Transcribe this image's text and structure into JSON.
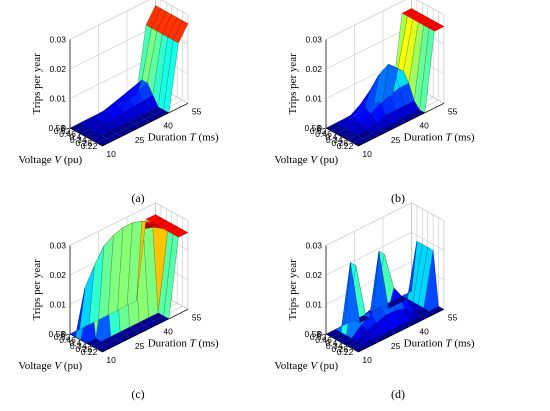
{
  "colors": {
    "colormap": "jet",
    "floor": "#00008f",
    "background": "#ffffff"
  },
  "chart_data": [
    {
      "type": "surface3d",
      "caption": "(a)",
      "zlabel": "Trips per year",
      "xlabel_main": "Duration",
      "xlabel_var": "T",
      "xlabel_unit": "(ms)",
      "ylabel_main": "Voltage",
      "ylabel_var": "V",
      "ylabel_unit": "(pu)",
      "x_ticks": [
        "10",
        "25",
        "40",
        "55"
      ],
      "y_ticks": [
        "0.22",
        "0.28",
        "0.34",
        "0.4",
        "0.46",
        "0.52",
        "0.58"
      ],
      "z_ticks": [
        "0",
        "0.01",
        "0.02",
        "0.03"
      ],
      "xlim": [
        10,
        55
      ],
      "ylim": [
        0.22,
        0.58
      ],
      "zlim": [
        0,
        0.03
      ],
      "duration": [
        10,
        15,
        20,
        25,
        30,
        35,
        40,
        45,
        50,
        55
      ],
      "voltage": [
        0.22,
        0.28,
        0.34,
        0.4,
        0.46,
        0.52,
        0.58
      ],
      "z": [
        [
          0,
          0,
          0,
          0,
          0,
          0,
          0,
          0,
          0.022,
          0.027
        ],
        [
          0,
          0,
          0,
          0,
          0,
          0,
          0,
          0,
          0.022,
          0.027
        ],
        [
          0,
          0,
          0,
          0,
          0,
          0,
          0,
          0,
          0.022,
          0.027
        ],
        [
          0,
          0,
          0.0005,
          0.001,
          0.002,
          0.0025,
          0.0025,
          0.003,
          0.022,
          0.027
        ],
        [
          0,
          0,
          0.001,
          0.002,
          0.003,
          0.004,
          0.005,
          0.006,
          0.022,
          0.027
        ],
        [
          0,
          0,
          0.001,
          0.002,
          0.003,
          0.004,
          0.005,
          0.006,
          0.022,
          0.027
        ],
        [
          0,
          0,
          0,
          0,
          0,
          0,
          0,
          0,
          0.022,
          0.027
        ]
      ]
    },
    {
      "type": "surface3d",
      "caption": "(b)",
      "zlabel": "Trips per year",
      "xlabel_main": "Duration",
      "xlabel_var": "T",
      "xlabel_unit": "(ms)",
      "ylabel_main": "Voltage",
      "ylabel_var": "V",
      "ylabel_unit": "(pu)",
      "x_ticks": [
        "10",
        "25",
        "40",
        "55"
      ],
      "y_ticks": [
        "0.22",
        "0.28",
        "0.34",
        "0.4",
        "0.46",
        "0.52",
        "0.58"
      ],
      "z_ticks": [
        "0",
        "0.01",
        "0.02",
        "0.03"
      ],
      "xlim": [
        10,
        55
      ],
      "ylim": [
        0.22,
        0.58
      ],
      "zlim": [
        0,
        0.03
      ],
      "duration": [
        10,
        15,
        20,
        25,
        30,
        35,
        40,
        45,
        50,
        55
      ],
      "voltage": [
        0.22,
        0.28,
        0.34,
        0.4,
        0.46,
        0.52,
        0.58
      ],
      "z": [
        [
          0,
          0,
          0,
          0,
          0,
          0,
          0,
          0,
          0.026,
          0.026
        ],
        [
          0,
          0,
          0,
          0,
          0,
          0,
          0,
          0,
          0.026,
          0.026
        ],
        [
          0,
          0,
          0,
          0.001,
          0.002,
          0.002,
          0.002,
          0.002,
          0.026,
          0.026
        ],
        [
          0,
          0,
          0.001,
          0.003,
          0.005,
          0.006,
          0.007,
          0.007,
          0.026,
          0.026
        ],
        [
          0,
          0,
          0.002,
          0.004,
          0.007,
          0.011,
          0.013,
          0.01,
          0.026,
          0.026
        ],
        [
          0,
          0,
          0.002,
          0.004,
          0.007,
          0.011,
          0.013,
          0.01,
          0.026,
          0.026
        ],
        [
          0,
          0,
          0,
          0,
          0,
          0,
          0,
          0,
          0.026,
          0.026
        ]
      ]
    },
    {
      "type": "surface3d",
      "caption": "(c)",
      "zlabel": "Trips per year",
      "xlabel_main": "Duration",
      "xlabel_var": "T",
      "xlabel_unit": "(ms)",
      "ylabel_main": "Voltage",
      "ylabel_var": "V",
      "ylabel_unit": "(pu)",
      "x_ticks": [
        "10",
        "25",
        "40",
        "55"
      ],
      "y_ticks": [
        "0.22",
        "0.28",
        "0.34",
        "0.4",
        "0.46",
        "0.52",
        "0.58"
      ],
      "z_ticks": [
        "0",
        "0.01",
        "0.02",
        "0.03"
      ],
      "xlim": [
        10,
        55
      ],
      "ylim": [
        0.22,
        0.58
      ],
      "zlim": [
        0,
        0.03
      ],
      "duration": [
        10,
        15,
        20,
        25,
        30,
        35,
        40,
        45,
        50,
        55
      ],
      "voltage": [
        0.22,
        0.28,
        0.34,
        0.4,
        0.46,
        0.52,
        0.58
      ],
      "z": [
        [
          0,
          0,
          0,
          0,
          0,
          0,
          0,
          0,
          0.026,
          0.026
        ],
        [
          0,
          0,
          0,
          0,
          0,
          0,
          0,
          0,
          0.026,
          0.026
        ],
        [
          0,
          0,
          0,
          0,
          0,
          0,
          0,
          0,
          0.026,
          0.026
        ],
        [
          0,
          0,
          0.021,
          0.026,
          0.028,
          0.029,
          0.029,
          0.028,
          0.026,
          0.026
        ],
        [
          0,
          0.015,
          0.021,
          0.026,
          0.028,
          0.029,
          0.029,
          0.028,
          0.026,
          0.026
        ],
        [
          0,
          0.015,
          0.021,
          0.026,
          0.028,
          0.029,
          0.029,
          0.028,
          0.026,
          0.026
        ],
        [
          0,
          0,
          0,
          0,
          0,
          0,
          0,
          0,
          0.026,
          0.026
        ]
      ]
    },
    {
      "type": "surface3d",
      "caption": "(d)",
      "zlabel": "Trips per year",
      "xlabel_main": "Duration",
      "xlabel_var": "T",
      "xlabel_unit": "(ms)",
      "ylabel_main": "Voltage",
      "ylabel_var": "V",
      "ylabel_unit": "(pu)",
      "x_ticks": [
        "10",
        "25",
        "40",
        "55"
      ],
      "y_ticks": [
        "0.22",
        "0.28",
        "0.34",
        "0.4",
        "0.46",
        "0.52",
        "0.58"
      ],
      "z_ticks": [
        "0",
        "0.01",
        "0.02",
        "0.03"
      ],
      "xlim": [
        10,
        55
      ],
      "ylim": [
        0.22,
        0.58
      ],
      "zlim": [
        0,
        0.03
      ],
      "duration": [
        10,
        15,
        20,
        25,
        30,
        35,
        40,
        45,
        50,
        55
      ],
      "voltage": [
        0.22,
        0.28,
        0.34,
        0.4,
        0.46,
        0.52,
        0.58
      ],
      "z": [
        [
          0,
          0,
          0,
          0,
          0,
          0,
          0,
          0,
          0,
          0
        ],
        [
          0,
          0,
          0,
          0,
          0,
          0,
          0,
          0,
          0,
          0
        ],
        [
          0,
          0,
          0.002,
          0.003,
          0.004,
          0.004,
          0.003,
          0,
          0,
          0.018
        ],
        [
          0,
          0,
          0.003,
          0.005,
          0.006,
          0.007,
          0.006,
          0.002,
          0,
          0.018
        ],
        [
          0,
          0,
          0.022,
          0.004,
          0.005,
          0.021,
          0.008,
          0.003,
          0,
          0.018
        ],
        [
          0,
          0,
          0.022,
          0,
          0,
          0.021,
          0,
          0,
          0,
          0.018
        ],
        [
          0,
          0,
          0,
          0,
          0,
          0,
          0,
          0,
          0,
          0
        ]
      ]
    }
  ]
}
